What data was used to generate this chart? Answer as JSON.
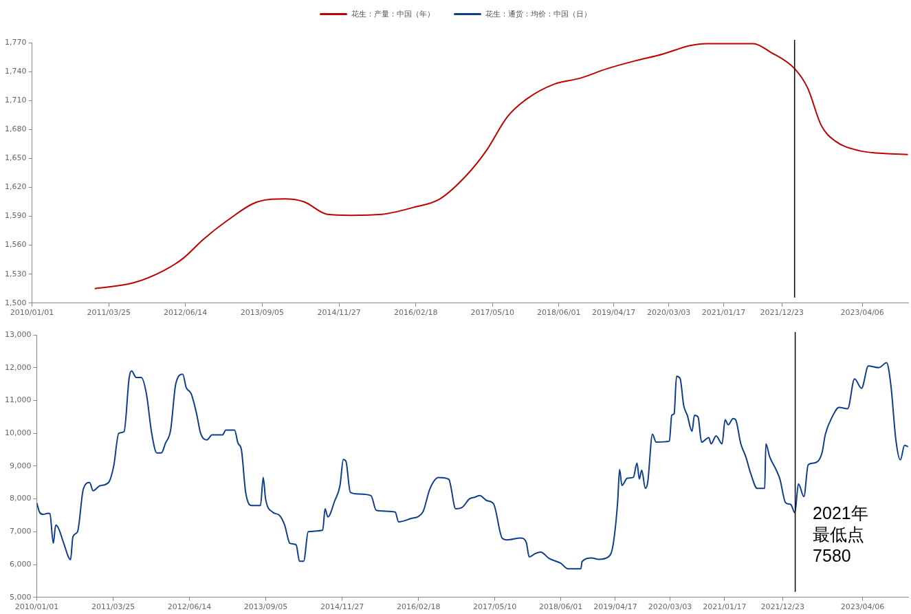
{
  "chart_data": [
    {
      "type": "line",
      "legend": "top",
      "xlim": [
        "2010-01-01",
        "2023-12-30"
      ],
      "xticks": [
        {
          "value": "2010-01-01",
          "label": "2010/01/01"
        },
        {
          "value": "2011-03-25",
          "label": "2011/03/25"
        },
        {
          "value": "2012-06-14",
          "label": "2012/06/14"
        },
        {
          "value": "2013-09-05",
          "label": "2013/09/05"
        },
        {
          "value": "2014-11-27",
          "label": "2014/11/27"
        },
        {
          "value": "2016-02-18",
          "label": "2016/02/18"
        },
        {
          "value": "2017-05-10",
          "label": "2017/05/10"
        },
        {
          "value": "2018-06-01",
          "label": "2018/06/01"
        },
        {
          "value": "2019-04-17",
          "label": "2019/04/17"
        },
        {
          "value": "2020-03-03",
          "label": "2020/03/03"
        },
        {
          "value": "2021-01-17",
          "label": "2021/01/17"
        },
        {
          "value": "2021-12-23",
          "label": "2021/12/23"
        },
        {
          "value": "2023-04-06",
          "label": "2023/04/06"
        }
      ],
      "ylim": [
        1500,
        1770
      ],
      "yticks": [
        {
          "value": 1500,
          "label": "1,500"
        },
        {
          "value": 1530,
          "label": "1,530"
        },
        {
          "value": 1560,
          "label": "1,560"
        },
        {
          "value": 1590,
          "label": "1,590"
        },
        {
          "value": 1620,
          "label": "1,620"
        },
        {
          "value": 1650,
          "label": "1,650"
        },
        {
          "value": 1680,
          "label": "1,680"
        },
        {
          "value": 1710,
          "label": "1,710"
        },
        {
          "value": 1740,
          "label": "1,740"
        },
        {
          "value": 1770,
          "label": "1,770"
        }
      ],
      "ref_lines": [
        {
          "axis": "x",
          "value": "2022-03-07",
          "color": "#000000"
        }
      ],
      "series": [
        {
          "name": "花生：产量：中国（年）",
          "color": "#c00000",
          "x": [
            "2011-01-02",
            "2011-08-16",
            "2012-02-12",
            "2012-06-05",
            "2012-09-26",
            "2013-02-09",
            "2013-08-09",
            "2014-01-14",
            "2014-05-07",
            "2014-09-20",
            "2015-02-03",
            "2015-08-03",
            "2016-01-31",
            "2016-07-07",
            "2016-12-12",
            "2017-04-04",
            "2017-08-04",
            "2017-11-29",
            "2018-05-05",
            "2018-10-01",
            "2019-03-10",
            "2019-08-18",
            "2020-01-27",
            "2020-07-06",
            "2020-10-10",
            "2021-03-23",
            "2021-07-09",
            "2021-10-19",
            "2022-03-07",
            "2022-05-22",
            "2022-08-10",
            "2022-10-30",
            "2023-03-19",
            "2023-08-14",
            "2023-12-28"
          ],
          "values": [
            1515,
            1521,
            1534,
            1547,
            1566,
            1585,
            1605,
            1608,
            1605,
            1592,
            1591,
            1592,
            1599,
            1608,
            1633,
            1658,
            1693,
            1712,
            1727,
            1733,
            1743,
            1751,
            1758,
            1767,
            1769,
            1769,
            1769,
            1760,
            1743,
            1723,
            1684,
            1668,
            1658,
            1655,
            1654
          ]
        }
      ]
    },
    {
      "type": "line",
      "legend": "top",
      "xlim": [
        "2010-01-01",
        "2023-12-30"
      ],
      "xticks": [
        {
          "value": "2010-01-01",
          "label": "2010/01/01"
        },
        {
          "value": "2011-03-25",
          "label": "2011/03/25"
        },
        {
          "value": "2012-06-14",
          "label": "2012/06/14"
        },
        {
          "value": "2013-09-05",
          "label": "2013/09/05"
        },
        {
          "value": "2014-11-27",
          "label": "2014/11/27"
        },
        {
          "value": "2016-02-18",
          "label": "2016/02/18"
        },
        {
          "value": "2017-05-10",
          "label": "2017/05/10"
        },
        {
          "value": "2018-06-01",
          "label": "2018/06/01"
        },
        {
          "value": "2019-04-17",
          "label": "2019/04/17"
        },
        {
          "value": "2020-03-03",
          "label": "2020/03/03"
        },
        {
          "value": "2021-01-17",
          "label": "2021/01/17"
        },
        {
          "value": "2021-12-23",
          "label": "2021/12/23"
        },
        {
          "value": "2023-04-06",
          "label": "2023/04/06"
        }
      ],
      "ylim": [
        5000,
        13000
      ],
      "yticks": [
        {
          "value": 5000,
          "label": "5,000"
        },
        {
          "value": 6000,
          "label": "6,000"
        },
        {
          "value": 7000,
          "label": "7,000"
        },
        {
          "value": 8000,
          "label": "8,000"
        },
        {
          "value": 9000,
          "label": "9,000"
        },
        {
          "value": 10000,
          "label": "10,000"
        },
        {
          "value": 11000,
          "label": "11,000"
        },
        {
          "value": 12000,
          "label": "12,000"
        },
        {
          "value": 13000,
          "label": "13,000"
        }
      ],
      "ref_lines": [
        {
          "axis": "x",
          "value": "2022-03-07",
          "color": "#000000"
        }
      ],
      "annotations": [
        {
          "text": "2021年最低点7580",
          "x": "2022-03-05",
          "y": 7580
        }
      ],
      "series": [
        {
          "name": "花生：通货：均价：中国（日）",
          "color": "#0d3d8c",
          "x": [
            "2010-01-01",
            "2010-01-17",
            "2010-02-06",
            "2010-03-09",
            "2010-03-19",
            "2010-04-08",
            "2010-04-22",
            "2010-05-09",
            "2010-06-08",
            "2010-07-18",
            "2010-08-01",
            "2010-08-28",
            "2010-10-01",
            "2010-11-07",
            "2010-11-27",
            "2011-01-06",
            "2011-02-26",
            "2011-03-28",
            "2011-04-27",
            "2011-05-28",
            "2011-06-27",
            "2011-07-11",
            "2011-08-07",
            "2011-09-06",
            "2011-10-06",
            "2011-11-06",
            "2011-12-06",
            "2012-01-01",
            "2012-01-26",
            "2012-02-25",
            "2012-03-26",
            "2012-05-06",
            "2012-05-26",
            "2012-06-25",
            "2012-07-26",
            "2012-08-19",
            "2012-09-25",
            "2012-10-25",
            "2012-12-25",
            "2013-01-14",
            "2013-03-06",
            "2013-03-26",
            "2013-04-15",
            "2013-05-10",
            "2013-06-15",
            "2013-08-05",
            "2013-08-21",
            "2013-09-04",
            "2013-10-15",
            "2013-11-24",
            "2013-12-25",
            "2014-01-24",
            "2014-03-02",
            "2014-03-22",
            "2014-04-15",
            "2014-05-12",
            "2014-08-05",
            "2014-08-19",
            "2014-09-04",
            "2014-10-15",
            "2014-11-14",
            "2014-12-04",
            "2014-12-19",
            "2015-01-14",
            "2015-03-06",
            "2015-05-15",
            "2015-06-15",
            "2015-10-04",
            "2015-10-24",
            "2016-01-03",
            "2016-03-14",
            "2016-04-24",
            "2016-06-14",
            "2016-08-13",
            "2016-09-23",
            "2016-11-02",
            "2016-12-12",
            "2017-01-12",
            "2017-02-11",
            "2017-03-24",
            "2017-05-03",
            "2017-06-23",
            "2017-07-23",
            "2017-10-08",
            "2017-11-11",
            "2017-11-28",
            "2018-01-01",
            "2018-02-03",
            "2018-03-26",
            "2018-06-01",
            "2018-07-13",
            "2018-09-27",
            "2018-10-04",
            "2018-11-29",
            "2019-01-10",
            "2019-03-06",
            "2019-04-03",
            "2019-05-01",
            "2019-05-12",
            "2019-05-26",
            "2019-06-26",
            "2019-08-01",
            "2019-08-22",
            "2019-09-05",
            "2019-09-19",
            "2019-10-10",
            "2019-10-24",
            "2019-11-21",
            "2019-12-12",
            "2020-02-28",
            "2020-03-13",
            "2020-03-27",
            "2020-04-10",
            "2020-05-01",
            "2020-05-22",
            "2020-06-12",
            "2020-07-10",
            "2020-07-24",
            "2020-08-14",
            "2020-09-04",
            "2020-10-16",
            "2020-10-30",
            "2020-11-28",
            "2021-01-02",
            "2021-01-20",
            "2021-02-07",
            "2021-03-08",
            "2021-03-23",
            "2021-04-22",
            "2021-05-21",
            "2021-06-20",
            "2021-07-27",
            "2021-09-09",
            "2021-09-16",
            "2021-10-08",
            "2021-11-14",
            "2021-12-07",
            "2022-01-10",
            "2022-02-09",
            "2022-03-05",
            "2022-03-26",
            "2022-04-27",
            "2022-05-22",
            "2022-06-21",
            "2022-08-10",
            "2022-08-31",
            "2022-10-10",
            "2022-11-19",
            "2023-01-09",
            "2023-02-18",
            "2023-03-31",
            "2023-05-10",
            "2023-07-10",
            "2023-08-25",
            "2023-09-19",
            "2023-10-19",
            "2023-11-14",
            "2023-12-08",
            "2023-12-29"
          ],
          "values": [
            7880,
            7600,
            7530,
            7560,
            7550,
            6650,
            7200,
            7100,
            6650,
            6150,
            6850,
            7000,
            8300,
            8500,
            8250,
            8400,
            8500,
            9000,
            10000,
            10050,
            11700,
            11900,
            11700,
            11700,
            11200,
            10000,
            9400,
            9400,
            9700,
            10100,
            11500,
            11800,
            11400,
            11200,
            10600,
            10000,
            9800,
            9950,
            9950,
            10100,
            10100,
            9700,
            9500,
            8200,
            7800,
            7800,
            8650,
            8000,
            7600,
            7500,
            7200,
            6650,
            6600,
            6100,
            6100,
            7000,
            7050,
            7700,
            7450,
            7950,
            8400,
            9200,
            9150,
            8200,
            8150,
            8100,
            7650,
            7600,
            7300,
            7400,
            7600,
            8300,
            8650,
            8600,
            7700,
            7750,
            8000,
            8050,
            8100,
            7950,
            7850,
            6800,
            6750,
            6810,
            6670,
            6230,
            6330,
            6380,
            6180,
            6040,
            5870,
            5870,
            6090,
            6200,
            6160,
            6230,
            6570,
            7930,
            8900,
            8410,
            8630,
            8660,
            9090,
            8610,
            8880,
            8320,
            8510,
            9970,
            9730,
            9760,
            10550,
            10600,
            11740,
            11670,
            10850,
            10550,
            10060,
            10550,
            10500,
            9730,
            9870,
            9680,
            9920,
            9680,
            10410,
            10260,
            10450,
            10410,
            9680,
            9290,
            8760,
            8320,
            8320,
            9680,
            9290,
            8900,
            8610,
            7880,
            7830,
            7580,
            8460,
            8070,
            9040,
            9090,
            9380,
            9970,
            10500,
            10790,
            10750,
            11660,
            11370,
            12050,
            12000,
            12150,
            11470,
            9770,
            9190,
            9630,
            9590
          ]
        }
      ]
    }
  ]
}
